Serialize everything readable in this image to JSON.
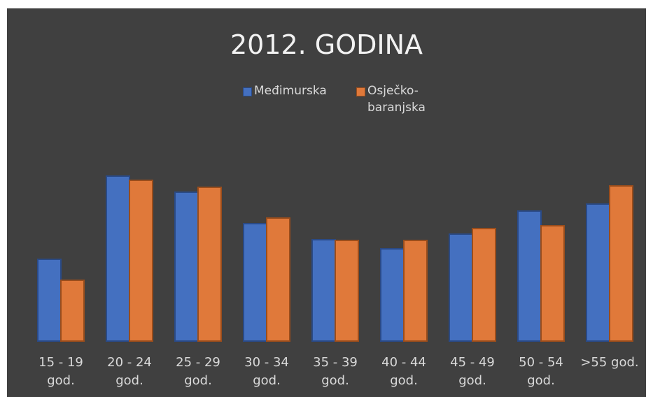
{
  "chart_data": {
    "type": "bar",
    "title": "2012. GODINA",
    "categories": [
      "15 - 19 god.",
      "20 - 24 god.",
      "25 - 29 god.",
      "30 - 34 god.",
      "35 - 39 god.",
      "40 - 44 god.",
      "45 - 49 god.",
      "50 - 54 god.",
      ">55 god."
    ],
    "series": [
      {
        "name": "Međimurska",
        "color": "#4470c0",
        "values": [
          117,
          236,
          213,
          168,
          145,
          132,
          153,
          186,
          196
        ]
      },
      {
        "name": "Osječko-baranjska",
        "color": "#e0793a",
        "values": [
          87,
          230,
          220,
          176,
          144,
          144,
          161,
          165,
          222
        ]
      }
    ],
    "ylim": [
      0,
      300
    ],
    "legend": "top"
  }
}
